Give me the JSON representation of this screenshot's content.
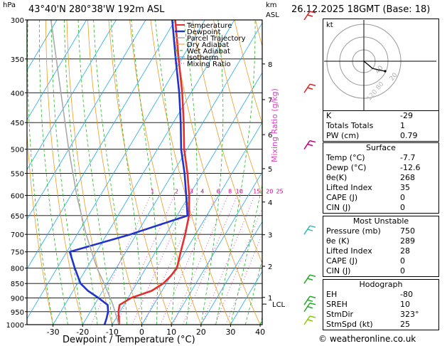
{
  "header": {
    "location": "43°40'N  280°38'W  192m  ASL",
    "datetime": "26.12.2025  18GMT  (Base: 18)",
    "pressure_unit": "hPa",
    "height_unit": "km",
    "height_ref": "ASL"
  },
  "chart_data": {
    "type": "line",
    "title": "Skew-T log-P sounding",
    "xlabel": "Dewpoint / Temperature (°C)",
    "ylabel": "hPa",
    "secondary_ylabel": "Mixing Ratio (g/kg)",
    "x_ticks": [
      -30,
      -20,
      -10,
      0,
      10,
      20,
      30,
      40
    ],
    "y_ticks": [
      300,
      350,
      400,
      450,
      500,
      550,
      600,
      650,
      700,
      750,
      800,
      850,
      900,
      950,
      1000
    ],
    "km_ticks": [
      {
        "km": "8",
        "p": 357
      },
      {
        "km": "7",
        "p": 411
      },
      {
        "km": "6",
        "p": 472
      },
      {
        "km": "5",
        "p": 540
      },
      {
        "km": "4",
        "p": 616
      },
      {
        "km": "3",
        "p": 701
      },
      {
        "km": "2",
        "p": 794
      },
      {
        "km": "1",
        "p": 898
      }
    ],
    "lcl_label": "LCL",
    "lcl_pressure": 922,
    "mixing_ratio_labels": [
      "1",
      "2",
      "3",
      "4",
      "6",
      "8",
      "10",
      "15",
      "20",
      "25"
    ],
    "legend": [
      "Temperature",
      "Dewpoint",
      "Parcel Trajectory",
      "Dry Adiabat",
      "Wet Adiabat",
      "Isotherm",
      "Mixing Ratio"
    ],
    "series": [
      {
        "name": "Temperature",
        "color": "#e03030",
        "points": [
          [
            1000,
            -7.7
          ],
          [
            975,
            -9
          ],
          [
            950,
            -10.5
          ],
          [
            925,
            -11.5
          ],
          [
            900,
            -9
          ],
          [
            875,
            -3.5
          ],
          [
            850,
            -1
          ],
          [
            825,
            0
          ],
          [
            800,
            0.5
          ],
          [
            750,
            -1.5
          ],
          [
            700,
            -3.5
          ],
          [
            650,
            -6
          ],
          [
            600,
            -10
          ],
          [
            550,
            -15
          ],
          [
            500,
            -21
          ],
          [
            450,
            -26.5
          ],
          [
            400,
            -33
          ],
          [
            350,
            -41
          ],
          [
            300,
            -50
          ]
        ]
      },
      {
        "name": "Dewpoint",
        "color": "#2233cc",
        "points": [
          [
            1000,
            -12.6
          ],
          [
            975,
            -13.2
          ],
          [
            950,
            -14
          ],
          [
            925,
            -15.5
          ],
          [
            900,
            -20
          ],
          [
            875,
            -25
          ],
          [
            850,
            -29
          ],
          [
            800,
            -34
          ],
          [
            750,
            -39
          ],
          [
            700,
            -22
          ],
          [
            650,
            -6.5
          ],
          [
            600,
            -11
          ],
          [
            550,
            -16
          ],
          [
            500,
            -22
          ],
          [
            450,
            -27.5
          ],
          [
            400,
            -34
          ],
          [
            350,
            -42
          ],
          [
            300,
            -51
          ]
        ]
      },
      {
        "name": "Parcel Trajectory",
        "color": "#aaaaaa",
        "points": [
          [
            1000,
            -7.7
          ],
          [
            922,
            -14
          ],
          [
            850,
            -21
          ],
          [
            800,
            -26.5
          ],
          [
            700,
            -37
          ],
          [
            600,
            -48
          ],
          [
            500,
            -60
          ],
          [
            400,
            -74
          ],
          [
            300,
            -92
          ]
        ]
      }
    ],
    "wind_barbs": [
      {
        "p": 1000,
        "color": "#88cc00"
      },
      {
        "p": 950,
        "color": "#22aa22"
      },
      {
        "p": 925,
        "color": "#22aa22"
      },
      {
        "p": 850,
        "color": "#22aa22"
      },
      {
        "p": 700,
        "color": "#33bbaa"
      },
      {
        "p": 500,
        "color": "#cc0077"
      },
      {
        "p": 400,
        "color": "#dd2222"
      },
      {
        "p": 300,
        "color": "#dd2222"
      }
    ]
  },
  "hodograph": {
    "label": "kt",
    "ring_labels": [
      "20",
      "40"
    ],
    "watermark": "120 80"
  },
  "indices": {
    "rows": [
      {
        "label": "K",
        "value": "-29"
      },
      {
        "label": "Totals Totals",
        "value": "1"
      },
      {
        "label": "PW (cm)",
        "value": "0.79"
      }
    ]
  },
  "surface": {
    "title": "Surface",
    "rows": [
      {
        "label": "Temp (°C)",
        "value": "-7.7"
      },
      {
        "label": "Dewp (°C)",
        "value": "-12.6"
      },
      {
        "label": "θe(K)",
        "value": "268"
      },
      {
        "label": "Lifted Index",
        "value": "35"
      },
      {
        "label": "CAPE (J)",
        "value": "0"
      },
      {
        "label": "CIN (J)",
        "value": "0"
      }
    ]
  },
  "most_unstable": {
    "title": "Most Unstable",
    "rows": [
      {
        "label": "Pressure (mb)",
        "value": "750"
      },
      {
        "label": "θe (K)",
        "value": "289"
      },
      {
        "label": "Lifted Index",
        "value": "28"
      },
      {
        "label": "CAPE (J)",
        "value": "0"
      },
      {
        "label": "CIN (J)",
        "value": "0"
      }
    ]
  },
  "hodograph_table": {
    "title": "Hodograph",
    "rows": [
      {
        "label": "EH",
        "value": "-80"
      },
      {
        "label": "SREH",
        "value": "10"
      },
      {
        "label": "StmDir",
        "value": "323°"
      },
      {
        "label": "StmSpd (kt)",
        "value": "25"
      }
    ]
  },
  "footer": {
    "text": "© weatheronline.co.uk"
  }
}
